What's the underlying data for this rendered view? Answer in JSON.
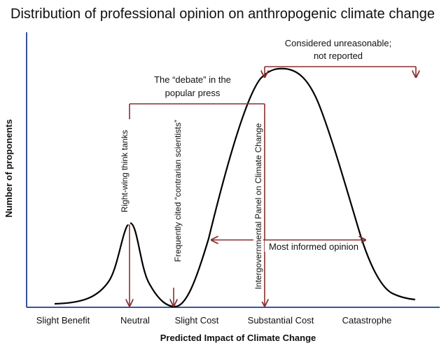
{
  "title": "Distribution of professional opinion on anthropogenic climate change",
  "axes": {
    "x_label": "Predicted Impact of Climate Change",
    "y_label": "Number of proponents",
    "x_ticks": [
      "Slight Benefit",
      "Neutral",
      "Slight Cost",
      "Substantial Cost",
      "Catastrophe"
    ]
  },
  "annotations": {
    "unreasonable": [
      "Considered unreasonable;",
      "not reported"
    ],
    "debate": [
      "The “debate” in the",
      "popular press"
    ],
    "think_tanks": "Right-wing  think tanks",
    "contrarian": "Frequently cited  “contrarian scientists”",
    "ipcc": "Intergovernmental  Panel on Climate Change",
    "informed": "Most informed opinion"
  },
  "colors": {
    "curve": "#000000",
    "bracket": "#8b2e2e",
    "text": "#111111"
  }
}
